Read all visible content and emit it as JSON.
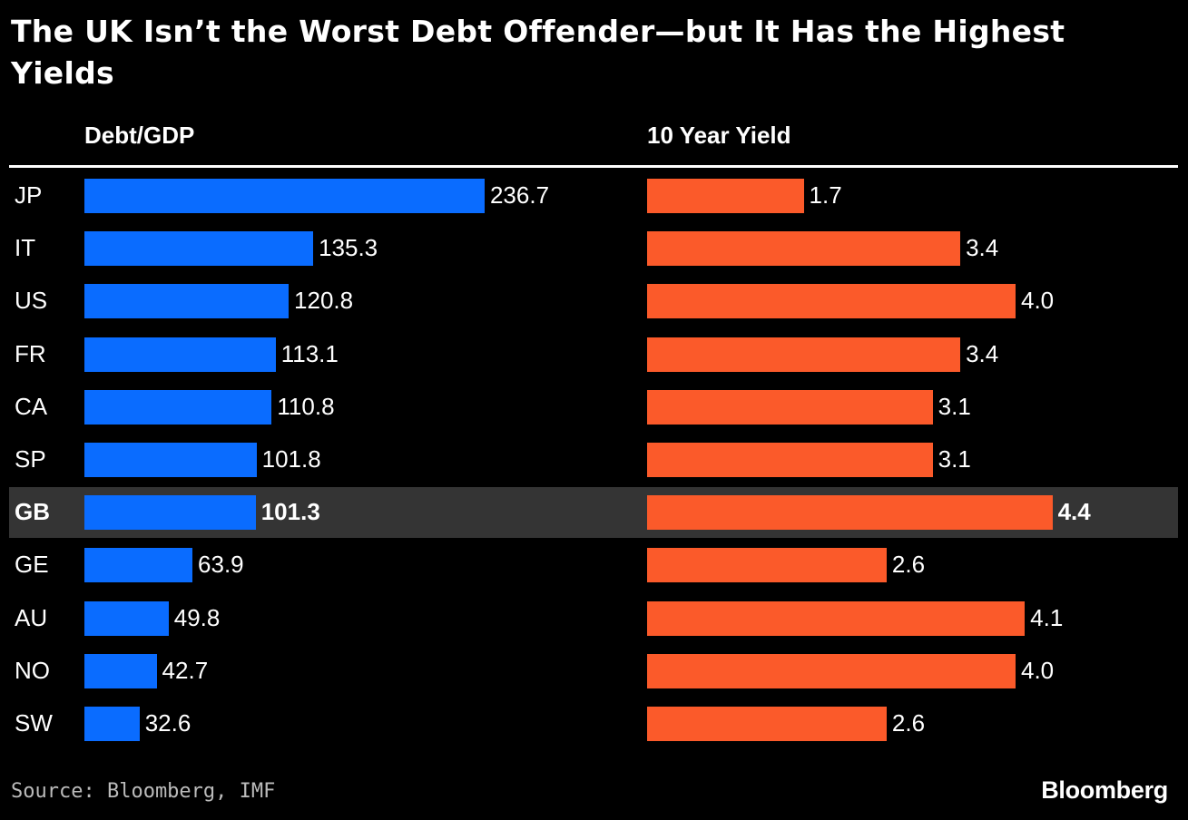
{
  "title": "The UK Isn’t the Worst Debt Offender—but It Has the Highest Yields",
  "source": "Source: Bloomberg, IMF",
  "brand": "Bloomberg",
  "colors": {
    "debt": "#0a6cff",
    "yield": "#fb5a2a",
    "highlight": "#343434"
  },
  "chart_data": {
    "type": "bar",
    "orientation": "horizontal",
    "categories": [
      "JP",
      "IT",
      "US",
      "FR",
      "CA",
      "SP",
      "GB",
      "GE",
      "AU",
      "NO",
      "SW"
    ],
    "highlight": "GB",
    "series": [
      {
        "name": "Debt/GDP",
        "values": [
          236.7,
          135.3,
          120.8,
          113.1,
          110.8,
          101.8,
          101.3,
          63.9,
          49.8,
          42.7,
          32.6
        ],
        "labels": [
          "236.7",
          "135.3",
          "120.8",
          "113.1",
          "110.8",
          "101.8",
          "101.3",
          "63.9",
          "49.8",
          "42.7",
          "32.6"
        ]
      },
      {
        "name": "10 Year Yield",
        "values": [
          1.7,
          3.4,
          4.0,
          3.4,
          3.1,
          3.1,
          4.4,
          2.6,
          4.1,
          4.0,
          2.6
        ],
        "labels": [
          "1.7",
          "3.4",
          "4.0",
          "3.4",
          "3.1",
          "3.1",
          "4.4",
          "2.6",
          "4.1",
          "4.0",
          "2.6"
        ]
      }
    ]
  }
}
